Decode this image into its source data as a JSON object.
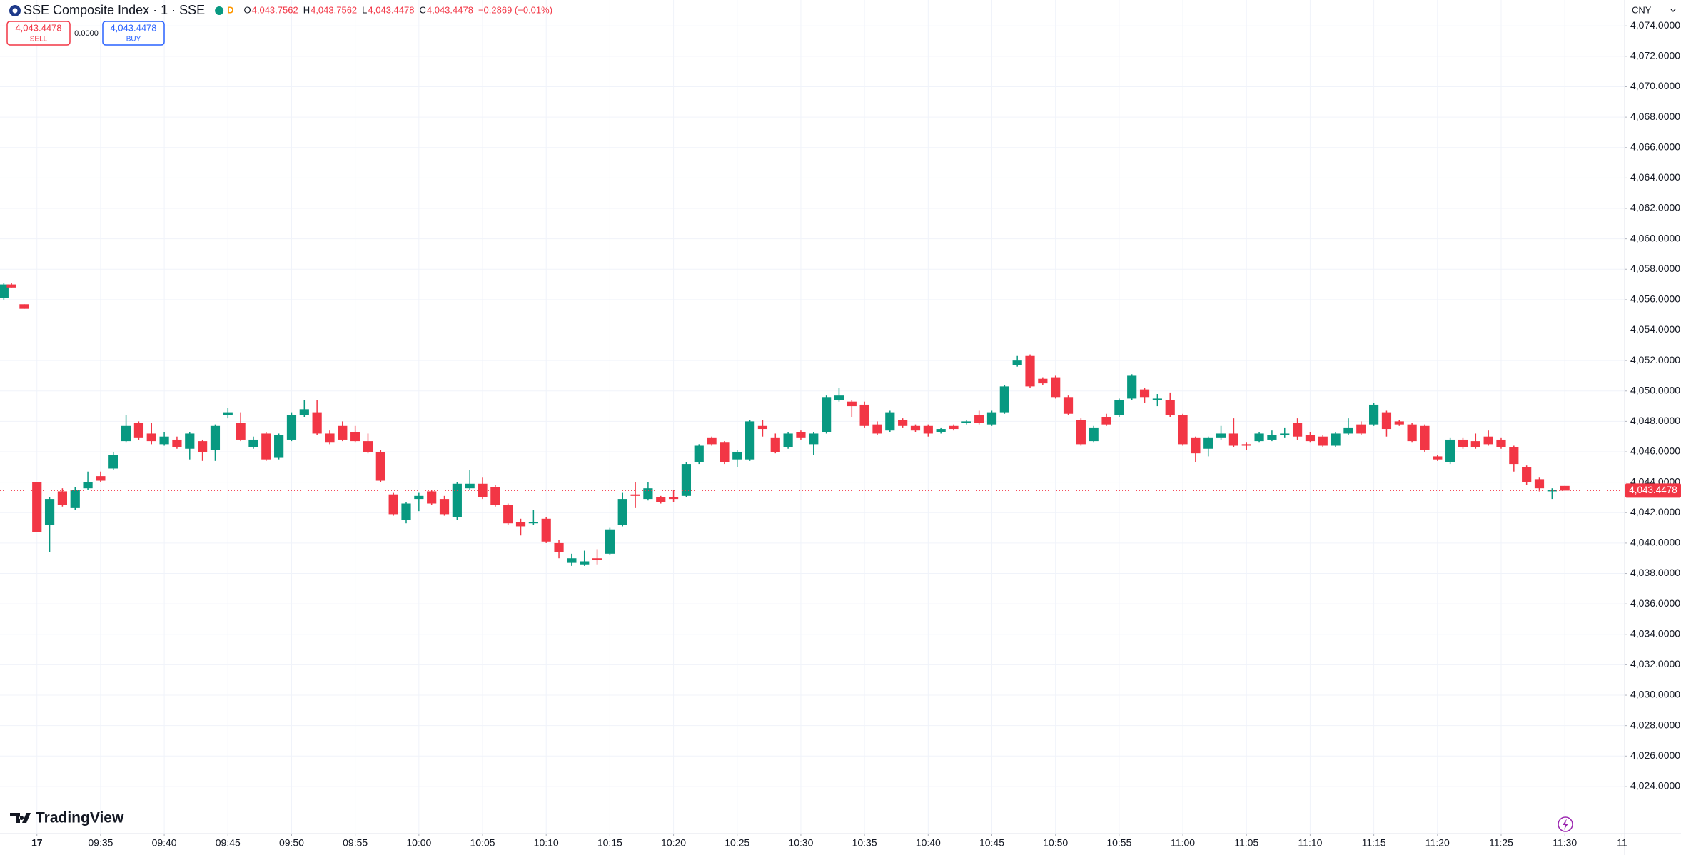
{
  "chart_data": {
    "type": "candlestick",
    "title": "SSE Composite Index · 1 · SSE",
    "interval_badge": "D",
    "ohlc_legend": [
      {
        "key": "O",
        "value": "4,043.7562"
      },
      {
        "key": "H",
        "value": "4,043.7562"
      },
      {
        "key": "L",
        "value": "4,043.4478"
      },
      {
        "key": "C",
        "value": "4,043.4478"
      }
    ],
    "change": "−0.2869 (−0.01%)",
    "trade": {
      "sell_price": "4,043.4478",
      "sell": "SELL",
      "spread": "0.0000",
      "buy_price": "4,043.4478",
      "buy": "BUY"
    },
    "currency": "CNY",
    "last_price_label": "4,043.4478",
    "brand": "TradingView",
    "up_color": "#089981",
    "down_color": "#f23645",
    "grid": true,
    "x": [
      -2.6,
      -2,
      -1,
      0,
      1,
      2,
      3,
      4,
      5,
      6,
      7,
      8,
      9,
      10,
      11,
      12,
      13,
      14,
      15,
      16,
      17,
      18,
      19,
      20,
      21,
      22,
      23,
      24,
      25,
      26,
      27,
      28,
      29,
      30,
      31,
      32,
      33,
      34,
      35,
      36,
      37,
      38,
      39,
      40,
      41,
      42,
      43,
      44,
      45,
      46,
      47,
      48,
      49,
      50,
      51,
      52,
      53,
      54,
      55,
      56,
      57,
      58,
      59,
      60,
      61,
      62,
      63,
      64,
      65,
      66,
      67,
      68,
      69,
      70,
      71,
      72,
      73,
      74,
      75,
      76,
      77,
      78,
      79,
      80,
      81,
      82,
      83,
      84,
      85,
      86,
      87,
      88,
      89,
      90,
      91,
      92,
      93,
      94,
      95,
      96,
      97,
      98,
      99,
      100,
      101,
      102,
      103,
      104,
      105,
      106,
      107,
      108,
      109,
      110,
      111,
      112,
      113,
      114,
      115,
      116,
      117,
      118,
      119,
      120
    ],
    "open": [
      4056.1,
      4057.0,
      4055.7,
      4044.0,
      4041.2,
      4043.4,
      4042.3,
      4043.6,
      4044.4,
      4044.9,
      4046.7,
      4047.9,
      4047.2,
      4046.5,
      4046.8,
      4046.2,
      4046.7,
      4046.1,
      4048.4,
      4047.9,
      4046.3,
      4047.2,
      4045.6,
      4046.8,
      4048.4,
      4048.6,
      4047.2,
      4047.7,
      4047.3,
      4046.7,
      4046.0,
      4043.2,
      4041.5,
      4042.9,
      4043.4,
      4042.9,
      4041.7,
      4043.6,
      4043.9,
      4043.7,
      4042.5,
      4041.4,
      4041.3,
      4041.6,
      4040.0,
      4038.7,
      4038.6,
      4039.0,
      4039.3,
      4041.2,
      4043.2,
      4042.9,
      4043.0,
      4043.0,
      4043.1,
      4045.3,
      4046.9,
      4046.6,
      4045.5,
      4045.5,
      4047.7,
      4046.9,
      4046.3,
      4047.3,
      4046.5,
      4047.3,
      4049.4,
      4049.3,
      4049.1,
      4047.8,
      4047.4,
      4048.1,
      4047.7,
      4047.7,
      4047.3,
      4047.7,
      4047.9,
      4048.4,
      4047.8,
      4048.6,
      4051.7,
      4052.3,
      4050.8,
      4050.9,
      4049.6,
      4048.1,
      4046.7,
      4048.3,
      4048.4,
      4049.5,
      4050.1,
      4049.4,
      4049.4,
      4048.4,
      4046.9,
      4046.2,
      4046.9,
      4047.2,
      4046.5,
      4046.7,
      4046.8,
      4047.1,
      4047.9,
      4047.1,
      4047.0,
      4046.4,
      4047.2,
      4047.8,
      4047.8,
      4048.6,
      4048.0,
      4047.8,
      4047.7,
      4045.7,
      4045.3,
      4046.8,
      4046.7,
      4047.0,
      4046.8,
      4046.3,
      4045.0,
      4044.2,
      4043.4,
      4043.7562
    ],
    "high": [
      4057.1,
      4057.1,
      4055.7,
      4044.0,
      4043.0,
      4043.6,
      4043.7,
      4044.7,
      4044.7,
      4046.0,
      4048.4,
      4048.0,
      4047.9,
      4047.3,
      4047.0,
      4047.3,
      4046.8,
      4047.8,
      4048.9,
      4048.6,
      4047.0,
      4047.3,
      4047.2,
      4048.6,
      4049.4,
      4049.4,
      4047.4,
      4048.0,
      4047.7,
      4047.2,
      4046.1,
      4043.3,
      4042.7,
      4043.3,
      4043.5,
      4043.1,
      4044.0,
      4044.8,
      4044.3,
      4043.8,
      4042.6,
      4041.6,
      4042.2,
      4041.7,
      4040.2,
      4039.3,
      4039.5,
      4039.6,
      4041.0,
      4043.3,
      4044.0,
      4044.0,
      4043.1,
      4043.5,
      4045.3,
      4046.5,
      4047.0,
      4046.7,
      4046.1,
      4048.1,
      4048.1,
      4047.2,
      4047.3,
      4047.4,
      4047.3,
      4049.7,
      4050.2,
      4049.4,
      4049.3,
      4048.0,
      4048.7,
      4048.2,
      4047.8,
      4047.8,
      4047.6,
      4047.8,
      4048.1,
      4048.7,
      4048.7,
      4050.4,
      4052.3,
      4052.4,
      4050.9,
      4051.0,
      4049.7,
      4048.2,
      4047.7,
      4048.5,
      4049.5,
      4051.1,
      4050.2,
      4049.8,
      4049.9,
      4048.5,
      4047.0,
      4047.0,
      4047.7,
      4048.2,
      4046.6,
      4047.3,
      4047.4,
      4047.6,
      4048.2,
      4047.3,
      4047.1,
      4047.3,
      4048.2,
      4048.0,
      4049.2,
      4048.7,
      4048.1,
      4047.9,
      4047.8,
      4045.8,
      4046.9,
      4046.9,
      4047.2,
      4047.4,
      4046.9,
      4046.4,
      4045.1,
      4044.3,
      4043.6,
      4043.7562
    ],
    "low": [
      4056.0,
      4056.8,
      4055.4,
      4040.7,
      4039.4,
      4042.4,
      4042.2,
      4043.5,
      4044.0,
      4044.8,
      4046.6,
      4046.8,
      4046.5,
      4046.4,
      4046.2,
      4045.5,
      4045.4,
      4045.4,
      4048.2,
      4046.7,
      4046.2,
      4045.4,
      4045.5,
      4046.7,
      4048.3,
      4047.1,
      4046.5,
      4046.7,
      4046.6,
      4045.9,
      4044.0,
      4041.8,
      4041.3,
      4042.1,
      4042.5,
      4041.8,
      4041.5,
      4043.5,
      4042.9,
      4042.4,
      4041.2,
      4040.5,
      4041.2,
      4040.0,
      4039.0,
      4038.5,
      4038.5,
      4038.6,
      4039.2,
      4041.1,
      4042.3,
      4042.8,
      4042.6,
      4042.7,
      4043.0,
      4045.2,
      4046.4,
      4045.2,
      4045.0,
      4045.4,
      4047.0,
      4045.9,
      4046.2,
      4046.8,
      4045.8,
      4047.2,
      4049.3,
      4048.3,
      4047.6,
      4047.1,
      4047.3,
      4047.6,
      4047.3,
      4047.0,
      4047.2,
      4047.4,
      4047.8,
      4047.8,
      4047.7,
      4048.5,
      4051.6,
      4050.2,
      4050.4,
      4049.5,
      4048.4,
      4046.4,
      4046.6,
      4047.7,
      4048.3,
      4049.4,
      4049.2,
      4049.0,
      4048.3,
      4046.4,
      4045.3,
      4045.7,
      4046.8,
      4046.3,
      4046.1,
      4046.6,
      4046.7,
      4046.9,
      4046.8,
      4046.6,
      4046.3,
      4046.3,
      4047.1,
      4047.1,
      4047.7,
      4047.0,
      4047.7,
      4046.6,
      4046.0,
      4045.4,
      4045.2,
      4046.2,
      4046.2,
      4046.4,
      4046.2,
      4044.7,
      4043.8,
      4043.4,
      4042.9,
      4043.4478
    ],
    "close": [
      4057.0,
      4056.8,
      4055.4,
      4040.7,
      4042.9,
      4042.5,
      4043.5,
      4044.0,
      4044.1,
      4045.8,
      4047.7,
      4046.9,
      4046.7,
      4047.0,
      4046.3,
      4047.2,
      4046.0,
      4047.7,
      4048.6,
      4046.8,
      4046.8,
      4045.5,
      4047.1,
      4048.4,
      4048.8,
      4047.2,
      4046.6,
      4046.8,
      4046.7,
      4046.0,
      4044.1,
      4041.9,
      4042.6,
      4043.1,
      4042.6,
      4041.9,
      4043.9,
      4043.9,
      4043.0,
      4042.5,
      4041.3,
      4041.1,
      4041.4,
      4040.1,
      4039.4,
      4039.0,
      4038.8,
      4038.9,
      4040.9,
      4042.9,
      4043.1,
      4043.6,
      4042.7,
      4042.9,
      4045.2,
      4046.4,
      4046.5,
      4045.3,
      4046.0,
      4048.0,
      4047.5,
      4046.0,
      4047.2,
      4046.9,
      4047.2,
      4049.6,
      4049.7,
      4049.0,
      4047.7,
      4047.2,
      4048.6,
      4047.7,
      4047.4,
      4047.2,
      4047.5,
      4047.5,
      4048.0,
      4047.9,
      4048.6,
      4050.3,
      4052.0,
      4050.3,
      4050.5,
      4049.6,
      4048.5,
      4046.5,
      4047.6,
      4047.8,
      4049.4,
      4051.0,
      4049.6,
      4049.5,
      4048.4,
      4046.5,
      4045.9,
      4046.9,
      4047.2,
      4046.4,
      4046.4,
      4047.2,
      4047.1,
      4047.2,
      4047.0,
      4046.7,
      4046.4,
      4047.2,
      4047.6,
      4047.2,
      4049.1,
      4047.5,
      4047.8,
      4046.7,
      4046.1,
      4045.5,
      4046.8,
      4046.3,
      4046.3,
      4046.5,
      4046.3,
      4045.2,
      4044.0,
      4043.6,
      4043.5,
      4043.4478
    ],
    "xlim": [
      -2.9,
      124.7
    ],
    "xticks": [
      {
        "value": 0,
        "label": "17"
      },
      {
        "value": 5,
        "label": "09:35"
      },
      {
        "value": 10,
        "label": "09:40"
      },
      {
        "value": 15,
        "label": "09:45"
      },
      {
        "value": 20,
        "label": "09:50"
      },
      {
        "value": 25,
        "label": "09:55"
      },
      {
        "value": 30,
        "label": "10:00"
      },
      {
        "value": 35,
        "label": "10:05"
      },
      {
        "value": 40,
        "label": "10:10"
      },
      {
        "value": 45,
        "label": "10:15"
      },
      {
        "value": 50,
        "label": "10:20"
      },
      {
        "value": 55,
        "label": "10:25"
      },
      {
        "value": 60,
        "label": "10:30"
      },
      {
        "value": 65,
        "label": "10:35"
      },
      {
        "value": 70,
        "label": "10:40"
      },
      {
        "value": 75,
        "label": "10:45"
      },
      {
        "value": 80,
        "label": "10:50"
      },
      {
        "value": 85,
        "label": "10:55"
      },
      {
        "value": 90,
        "label": "11:00"
      },
      {
        "value": 95,
        "label": "11:05"
      },
      {
        "value": 100,
        "label": "11:10"
      },
      {
        "value": 105,
        "label": "11:15"
      },
      {
        "value": 110,
        "label": "11:20"
      },
      {
        "value": 115,
        "label": "11:25"
      },
      {
        "value": 120,
        "label": "11:30"
      },
      {
        "value": 124.5,
        "label": "11"
      }
    ],
    "ylim": [
      4020.9,
      4075.7
    ],
    "yticks": [
      {
        "value": 4024,
        "label": "4,024.0000"
      },
      {
        "value": 4026,
        "label": "4,026.0000"
      },
      {
        "value": 4028,
        "label": "4,028.0000"
      },
      {
        "value": 4030,
        "label": "4,030.0000"
      },
      {
        "value": 4032,
        "label": "4,032.0000"
      },
      {
        "value": 4034,
        "label": "4,034.0000"
      },
      {
        "value": 4036,
        "label": "4,036.0000"
      },
      {
        "value": 4038,
        "label": "4,038.0000"
      },
      {
        "value": 4040,
        "label": "4,040.0000"
      },
      {
        "value": 4042,
        "label": "4,042.0000"
      },
      {
        "value": 4044,
        "label": "4,044.0000"
      },
      {
        "value": 4046,
        "label": "4,046.0000"
      },
      {
        "value": 4048,
        "label": "4,048.0000"
      },
      {
        "value": 4050,
        "label": "4,050.0000"
      },
      {
        "value": 4052,
        "label": "4,052.0000"
      },
      {
        "value": 4054,
        "label": "4,054.0000"
      },
      {
        "value": 4056,
        "label": "4,056.0000"
      },
      {
        "value": 4058,
        "label": "4,058.0000"
      },
      {
        "value": 4060,
        "label": "4,060.0000"
      },
      {
        "value": 4062,
        "label": "4,062.0000"
      },
      {
        "value": 4064,
        "label": "4,064.0000"
      },
      {
        "value": 4066,
        "label": "4,066.0000"
      },
      {
        "value": 4068,
        "label": "4,068.0000"
      },
      {
        "value": 4070,
        "label": "4,070.0000"
      },
      {
        "value": 4072,
        "label": "4,072.0000"
      },
      {
        "value": 4074,
        "label": "4,074.0000"
      }
    ]
  }
}
